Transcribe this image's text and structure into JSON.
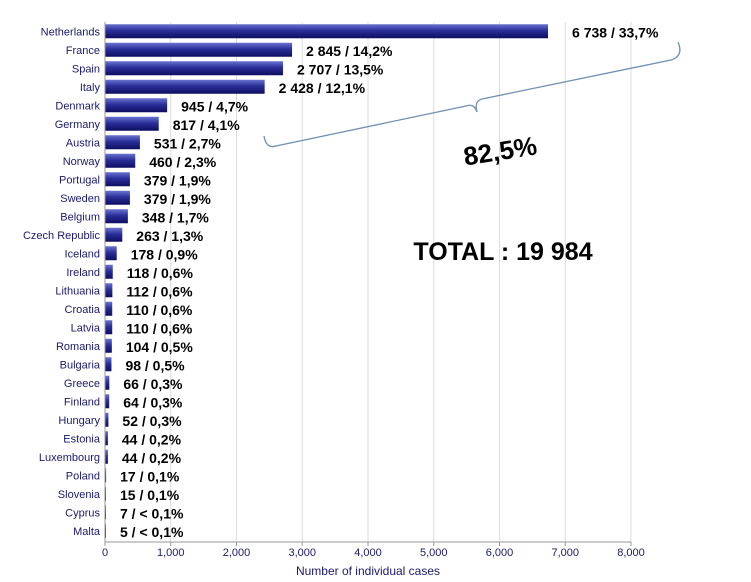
{
  "chart_data": {
    "type": "bar",
    "orientation": "horizontal",
    "categories": [
      "Netherlands",
      "France",
      "Spain",
      "Italy",
      "Denmark",
      "Germany",
      "Austria",
      "Norway",
      "Portugal",
      "Sweden",
      "Belgium",
      "Czech Republic",
      "Iceland",
      "Ireland",
      "Lithuania",
      "Croatia",
      "Latvia",
      "Romania",
      "Bulgaria",
      "Greece",
      "Finland",
      "Hungary",
      "Estonia",
      "Luxembourg",
      "Poland",
      "Slovenia",
      "Cyprus",
      "Malta"
    ],
    "values": [
      6738,
      2845,
      2707,
      2428,
      945,
      817,
      531,
      460,
      379,
      379,
      348,
      263,
      178,
      118,
      112,
      110,
      110,
      104,
      98,
      66,
      64,
      52,
      44,
      44,
      17,
      15,
      7,
      5
    ],
    "data_labels": [
      "6 738 / 33,7%",
      "2 845 / 14,2%",
      "2 707 / 13,5%",
      "2 428 / 12,1%",
      "945 / 4,7%",
      "817 / 4,1%",
      "531 / 2,7%",
      "460 / 2,3%",
      "379 / 1,9%",
      "379 / 1,9%",
      "348 / 1,7%",
      "263 / 1,3%",
      "178 / 0,9%",
      "118 / 0,6%",
      "112 / 0,6%",
      "110 / 0,6%",
      "110 / 0,6%",
      "104 / 0,5%",
      "98 / 0,5%",
      "66 / 0,3%",
      "64 / 0,3%",
      "52 / 0,3%",
      "44 / 0,2%",
      "44 / 0,2%",
      "17 / 0,1%",
      "15 / 0,1%",
      "7 / < 0,1%",
      "5 / < 0,1%"
    ],
    "xlabel": "Number of individual cases",
    "ylabel": "",
    "xlim": [
      0,
      8000
    ],
    "xticks": [
      0,
      1000,
      2000,
      3000,
      4000,
      5000,
      6000,
      7000,
      8000
    ],
    "xtick_labels": [
      "0",
      "1,000",
      "2,000",
      "3,000",
      "4,000",
      "5,000",
      "6,000",
      "7,000",
      "8,000"
    ],
    "grid": "vertical",
    "annotations": {
      "brace_label": "82,5%",
      "total_label": "TOTAL : 19 984"
    },
    "colors": {
      "bar_dark": "#0d0d5e",
      "bar_mid": "#2a2f9a",
      "bar_light": "#6a72d0",
      "axis_text": "#1a1a6e",
      "grid": "#dcdcdc",
      "brace": "#6f8fb5"
    }
  }
}
